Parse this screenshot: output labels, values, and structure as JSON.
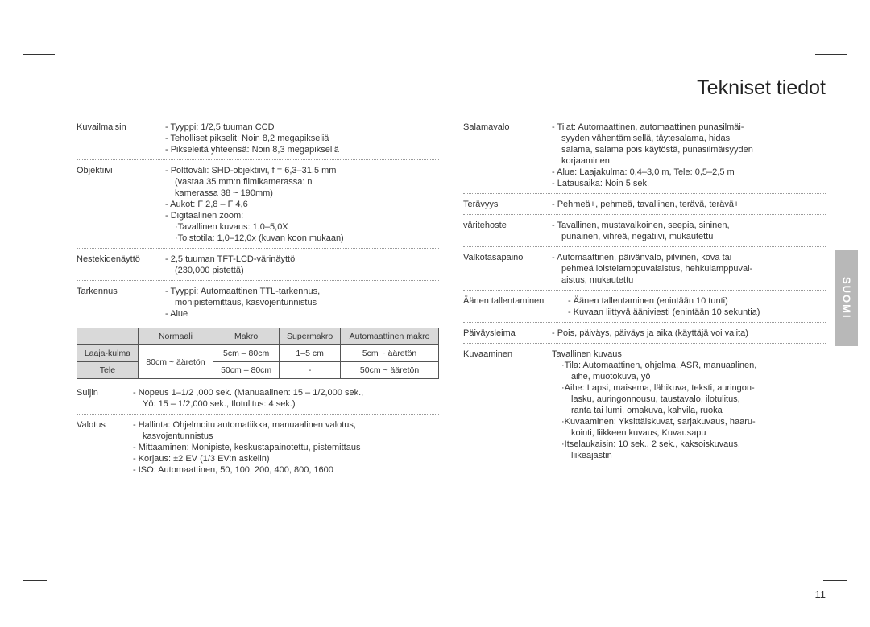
{
  "title": "Tekniset tiedot",
  "language_tab": "SUOMI",
  "page_number": "11",
  "left_specs": [
    {
      "label": "Kuvailmaisin",
      "lines": [
        "- Tyyppi: 1/2,5 tuuman CCD",
        "- Teholliset pikselit: Noin 8,2 megapikseliä",
        "- Pikseleitä yhteensä: Noin 8,3 megapikseliä"
      ],
      "dotted": true
    },
    {
      "label": "Objektiivi",
      "lines": [
        "- Polttoväli: SHD-objektiivi, f = 6,3–31,5 mm",
        "  (vastaa 35 mm:n filmikamerassa: n",
        "  kamerassa 38 ~ 190mm)",
        "- Aukot: F 2,8 – F 4,6",
        "- Digitaalinen zoom:",
        "  ·Tavallinen kuvaus: 1,0–5,0X",
        "  ·Toistotila: 1,0–12,0x (kuvan koon mukaan)"
      ],
      "dotted": true
    },
    {
      "label": "Nestekidenäyttö",
      "lines": [
        "- 2,5 tuuman TFT-LCD-värinäyttö",
        "  (230,000 pistettä)"
      ],
      "dotted": true
    },
    {
      "label": "Tarkennus",
      "lines": [
        "- Tyyppi: Automaattinen TTL-tarkennus,",
        "  monipistemittaus, kasvojentunnistus",
        "- Alue"
      ],
      "dotted": false
    }
  ],
  "range_table": {
    "headers": [
      "",
      "Normaali",
      "Makro",
      "Supermakro",
      "Automaattinen makro"
    ],
    "rows": [
      {
        "h": "Laaja-kulma",
        "c": [
          "80cm ~ ääretön",
          "5cm – 80cm",
          "1–5 cm",
          "5cm ~ ääretön"
        ],
        "rowspan_first": true
      },
      {
        "h": "Tele",
        "c": [
          "",
          "50cm – 80cm",
          "-",
          "50cm ~ ääretön"
        ]
      }
    ]
  },
  "left_specs2": [
    {
      "label": "Suljin",
      "lines": [
        "- Nopeus 1–1/2 ,000 sek. (Manuaalinen: 15 – 1/2,000 sek.,",
        "  Yö: 15 – 1/2,000 sek., Ilotulitus: 4 sek.)"
      ],
      "dotted": true
    },
    {
      "label": "Valotus",
      "lines": [
        "- Hallinta: Ohjelmoitu automatiikka, manuaalinen valotus,",
        "  kasvojentunnistus",
        "- Mittaaminen: Monipiste, keskustapainotettu, pistemittaus",
        "- Korjaus: ±2 EV (1/3 EV:n askelin)",
        "- ISO: Automaattinen, 50, 100, 200, 400, 800, 1600"
      ],
      "dotted": false
    }
  ],
  "right_specs": [
    {
      "label": "Salamavalo",
      "lines": [
        "- Tilat: Automaattinen, automaattinen punasilmäi-",
        "  syyden vähentämisellä, täytesalama, hidas",
        "  salama, salama pois käytöstä, punasilmäisyyden",
        "  korjaaminen",
        "- Alue: Laajakulma: 0,4–3,0 m, Tele: 0,5–2,5 m",
        "- Latausaika: Noin 5 sek."
      ],
      "dotted": true
    },
    {
      "label": "Terävyys",
      "lines": [
        "- Pehmeä+, pehmeä, tavallinen, terävä, terävä+"
      ],
      "dotted": true
    },
    {
      "label": "väritehoste",
      "lines": [
        "- Tavallinen, mustavalkoinen, seepia, sininen,",
        "  punainen, vihreä, negatiivi, mukautettu"
      ],
      "dotted": true
    },
    {
      "label": "Valkotasapaino",
      "lines": [
        "- Automaattinen, päivänvalo, pilvinen, kova tai",
        "  pehmeä loistelamppuvalaistus, hehkulamppuval-",
        "  aistus, mukautettu"
      ],
      "dotted": true
    },
    {
      "label": "Äänen tallentaminen",
      "lines": [
        "- Äänen tallentaminen (enintään 10 tunti)",
        "- Kuvaan liittyvä ääniviesti (enintään 10 sekuntia)"
      ],
      "dotted": true,
      "wide": true
    },
    {
      "label": "Päiväysleima",
      "lines": [
        "- Pois, päiväys, päiväys ja aika (käyttäjä voi valita)"
      ],
      "dotted": true
    },
    {
      "label": "Kuvaaminen",
      "lines": [
        "Tavallinen kuvaus",
        "  ·Tila: Automaattinen, ohjelma, ASR, manuaalinen,",
        "    aihe, muotokuva, yö",
        "  ·Aihe: Lapsi, maisema, lähikuva, teksti, auringon-",
        "    lasku, auringonnousu, taustavalo, ilotulitus,",
        "    ranta tai lumi, omakuva, kahvila, ruoka",
        "  ·Kuvaaminen: Yksittäiskuvat, sarjakuvaus, haaru-",
        "    kointi, liikkeen kuvaus, Kuvausapu",
        "  ·Itselaukaisin: 10 sek., 2 sek., kaksoiskuvaus,",
        "    liikeajastin"
      ],
      "dotted": false
    }
  ]
}
